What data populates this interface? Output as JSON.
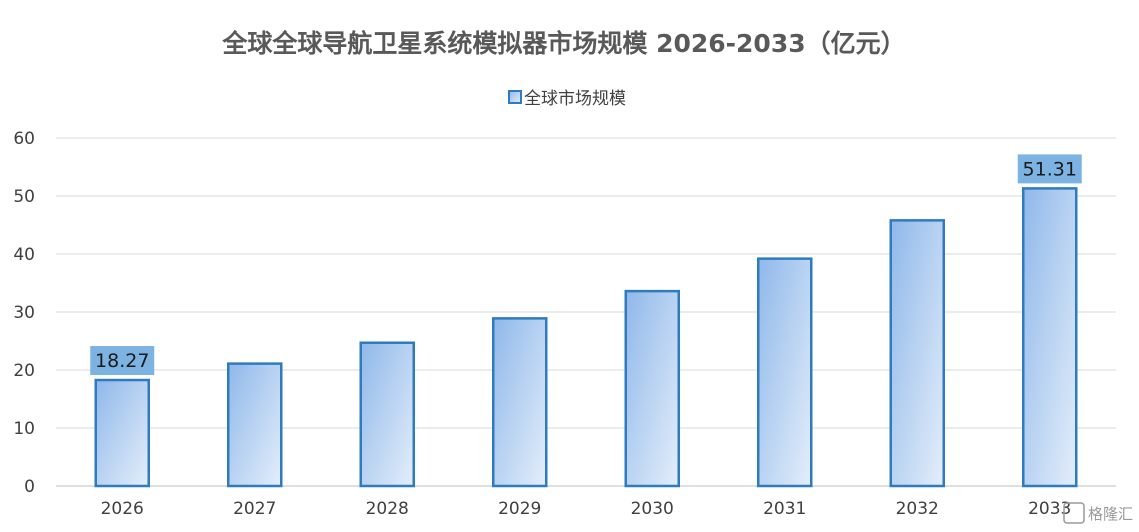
{
  "chart_data": {
    "type": "bar",
    "title": "全球全球导航卫星系统模拟器市场规模 2026-2033（亿元）",
    "categories": [
      "2026",
      "2027",
      "2028",
      "2029",
      "2030",
      "2031",
      "2032",
      "2033"
    ],
    "series": [
      {
        "name": "全球市场规模",
        "values": [
          18.27,
          21.1,
          24.7,
          28.9,
          33.6,
          39.2,
          45.8,
          51.31
        ]
      }
    ],
    "data_labels": [
      {
        "category": "2026",
        "text": "18.27"
      },
      {
        "category": "2033",
        "text": "51.31"
      }
    ],
    "ylim": [
      0,
      60
    ],
    "yticks": [
      0,
      10,
      20,
      30,
      40,
      50,
      60
    ],
    "xlabel": "",
    "ylabel": "",
    "grid": true,
    "legend_position": "top-center",
    "colors": {
      "bar_top": "#8fb8ea",
      "bar_bottom": "#dce9f8",
      "bar_border": "#2e7bbf",
      "label_box": "#7cb3e3",
      "grid": "#d9d9d9"
    }
  },
  "watermark": "格隆汇"
}
